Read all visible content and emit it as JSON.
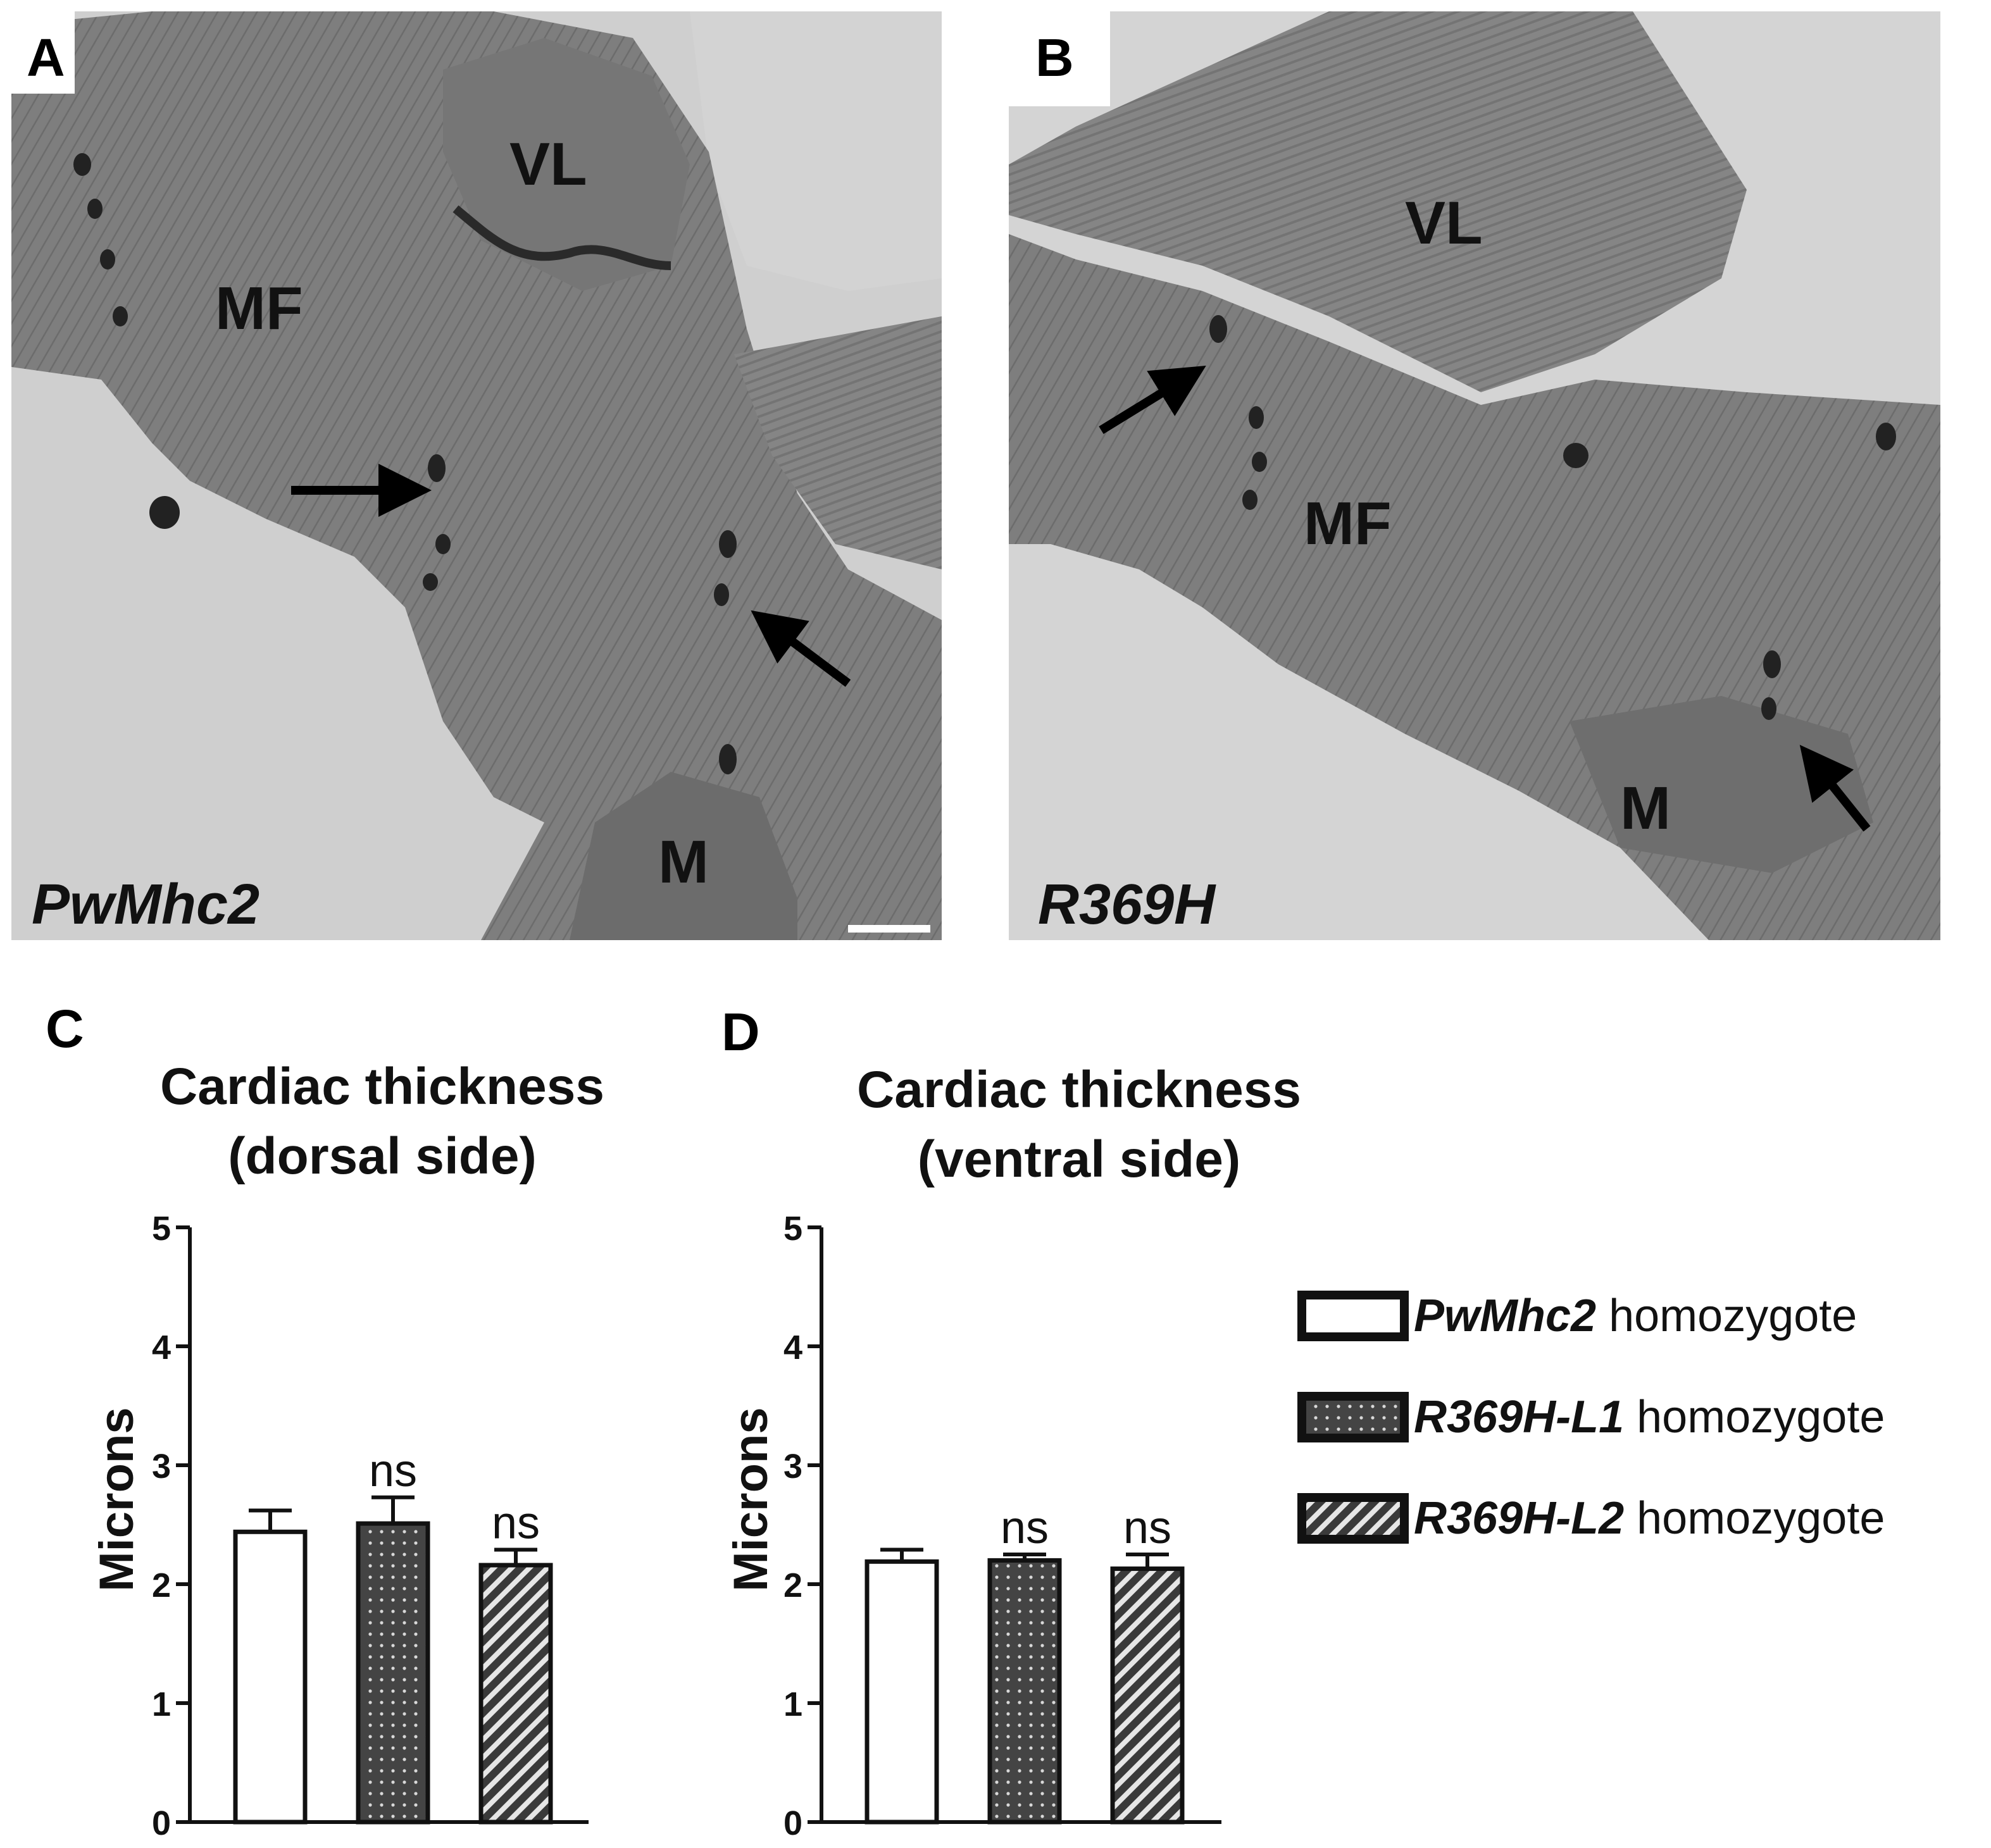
{
  "panels": {
    "A": {
      "letter": "A",
      "genotype": "PwMhc2",
      "labels": [
        {
          "key": "vl",
          "text": "VL"
        },
        {
          "key": "mf",
          "text": "MF"
        },
        {
          "key": "m",
          "text": "M"
        }
      ]
    },
    "B": {
      "letter": "B",
      "genotype": "R369H",
      "labels": [
        {
          "key": "vl",
          "text": "VL"
        },
        {
          "key": "mf",
          "text": "MF"
        },
        {
          "key": "m",
          "text": "M"
        }
      ]
    }
  },
  "legend": [
    {
      "italic": "PwMhc2",
      "rest": " homozygote",
      "pattern": "open"
    },
    {
      "italic": "R369H-L1",
      "rest": " homozygote",
      "pattern": "dots"
    },
    {
      "italic": "R369H-L2",
      "rest": " homozygote",
      "pattern": "hatch"
    }
  ],
  "chart_data": [
    {
      "panel": "C",
      "type": "bar",
      "title": [
        "Cardiac thickness",
        "(dorsal side)"
      ],
      "ylabel": "Microns",
      "ylim": [
        0,
        5
      ],
      "yticks": [
        0,
        1,
        2,
        3,
        4,
        5
      ],
      "categories": [
        "PwMhc2 homozygote",
        "R369H-L1 homozygote",
        "R369H-L2 homozygote"
      ],
      "values": [
        2.44,
        2.51,
        2.16
      ],
      "errors": [
        0.18,
        0.22,
        0.13
      ],
      "annotations": [
        "",
        "ns",
        "ns"
      ],
      "patterns": [
        "open",
        "dots",
        "hatch"
      ]
    },
    {
      "panel": "D",
      "type": "bar",
      "title": [
        "Cardiac thickness",
        "(ventral side)"
      ],
      "ylabel": "Microns",
      "ylim": [
        0,
        5
      ],
      "yticks": [
        0,
        1,
        2,
        3,
        4,
        5
      ],
      "categories": [
        "PwMhc2 homozygote",
        "R369H-L1 homozygote",
        "R369H-L2 homozygote"
      ],
      "values": [
        2.19,
        2.2,
        2.13
      ],
      "errors": [
        0.1,
        0.05,
        0.12
      ],
      "annotations": [
        "",
        "ns",
        "ns"
      ],
      "patterns": [
        "open",
        "dots",
        "hatch"
      ]
    }
  ]
}
